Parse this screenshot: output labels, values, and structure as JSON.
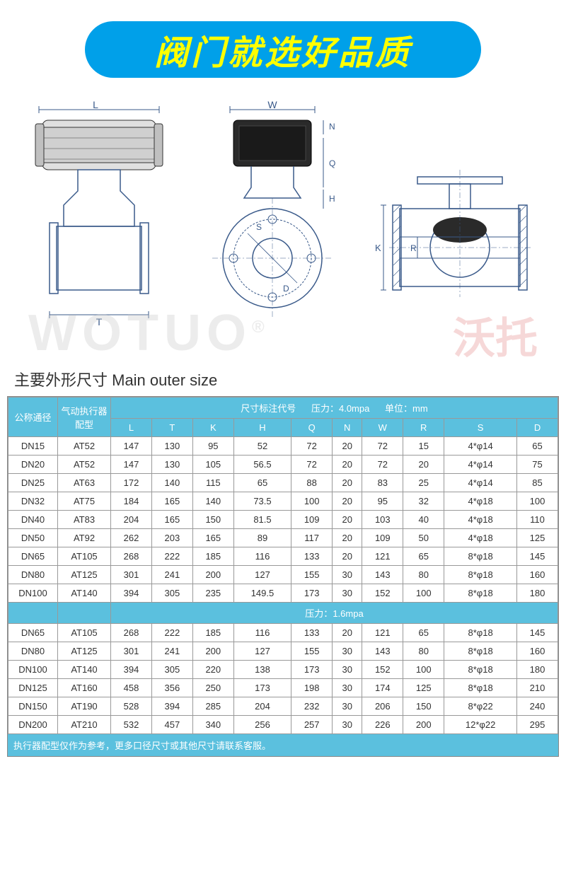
{
  "banner": {
    "text": "阀门就选好品质"
  },
  "watermark": {
    "en": "WOTUO",
    "cn": "沃托",
    "reg": "®"
  },
  "section_title": "主要外形尺寸 Main outer size",
  "diagram_labels": [
    "L",
    "T",
    "W",
    "N",
    "Q",
    "H",
    "S",
    "D",
    "K",
    "R"
  ],
  "table": {
    "header": {
      "col1": "公称通径",
      "col2": "气动执行器配型",
      "spec_label": "尺寸标注代号",
      "pressure_label": "压力：",
      "pressure1": "4.0mpa",
      "pressure2": "1.6mpa",
      "unit_label": "单位：",
      "unit": "mm",
      "cols": [
        "L",
        "T",
        "K",
        "H",
        "Q",
        "N",
        "W",
        "R",
        "S",
        "D"
      ]
    },
    "rows1": [
      {
        "dn": "DN15",
        "at": "AT52",
        "v": [
          "147",
          "130",
          "95",
          "52",
          "72",
          "20",
          "72",
          "15",
          "4*φ14",
          "65"
        ]
      },
      {
        "dn": "DN20",
        "at": "AT52",
        "v": [
          "147",
          "130",
          "105",
          "56.5",
          "72",
          "20",
          "72",
          "20",
          "4*φ14",
          "75"
        ]
      },
      {
        "dn": "DN25",
        "at": "AT63",
        "v": [
          "172",
          "140",
          "115",
          "65",
          "88",
          "20",
          "83",
          "25",
          "4*φ14",
          "85"
        ]
      },
      {
        "dn": "DN32",
        "at": "AT75",
        "v": [
          "184",
          "165",
          "140",
          "73.5",
          "100",
          "20",
          "95",
          "32",
          "4*φ18",
          "100"
        ]
      },
      {
        "dn": "DN40",
        "at": "AT83",
        "v": [
          "204",
          "165",
          "150",
          "81.5",
          "109",
          "20",
          "103",
          "40",
          "4*φ18",
          "110"
        ]
      },
      {
        "dn": "DN50",
        "at": "AT92",
        "v": [
          "262",
          "203",
          "165",
          "89",
          "117",
          "20",
          "109",
          "50",
          "4*φ18",
          "125"
        ]
      },
      {
        "dn": "DN65",
        "at": "AT105",
        "v": [
          "268",
          "222",
          "185",
          "116",
          "133",
          "20",
          "121",
          "65",
          "8*φ18",
          "145"
        ]
      },
      {
        "dn": "DN80",
        "at": "AT125",
        "v": [
          "301",
          "241",
          "200",
          "127",
          "155",
          "30",
          "143",
          "80",
          "8*φ18",
          "160"
        ]
      },
      {
        "dn": "DN100",
        "at": "AT140",
        "v": [
          "394",
          "305",
          "235",
          "149.5",
          "173",
          "30",
          "152",
          "100",
          "8*φ18",
          "180"
        ]
      }
    ],
    "rows2": [
      {
        "dn": "DN65",
        "at": "AT105",
        "v": [
          "268",
          "222",
          "185",
          "116",
          "133",
          "20",
          "121",
          "65",
          "8*φ18",
          "145"
        ]
      },
      {
        "dn": "DN80",
        "at": "AT125",
        "v": [
          "301",
          "241",
          "200",
          "127",
          "155",
          "30",
          "143",
          "80",
          "8*φ18",
          "160"
        ]
      },
      {
        "dn": "DN100",
        "at": "AT140",
        "v": [
          "394",
          "305",
          "220",
          "138",
          "173",
          "30",
          "152",
          "100",
          "8*φ18",
          "180"
        ]
      },
      {
        "dn": "DN125",
        "at": "AT160",
        "v": [
          "458",
          "356",
          "250",
          "173",
          "198",
          "30",
          "174",
          "125",
          "8*φ18",
          "210"
        ]
      },
      {
        "dn": "DN150",
        "at": "AT190",
        "v": [
          "528",
          "394",
          "285",
          "204",
          "232",
          "30",
          "206",
          "150",
          "8*φ22",
          "240"
        ]
      },
      {
        "dn": "DN200",
        "at": "AT210",
        "v": [
          "532",
          "457",
          "340",
          "256",
          "257",
          "30",
          "226",
          "200",
          "12*φ22",
          "295"
        ]
      }
    ]
  },
  "footer": "执行器配型仅作为参考，更多口径尺寸或其他尺寸请联系客服。",
  "colors": {
    "banner_bg": "#00a0e9",
    "banner_text": "#ffff00",
    "th_bg": "#5bc0de",
    "border": "#999999"
  }
}
